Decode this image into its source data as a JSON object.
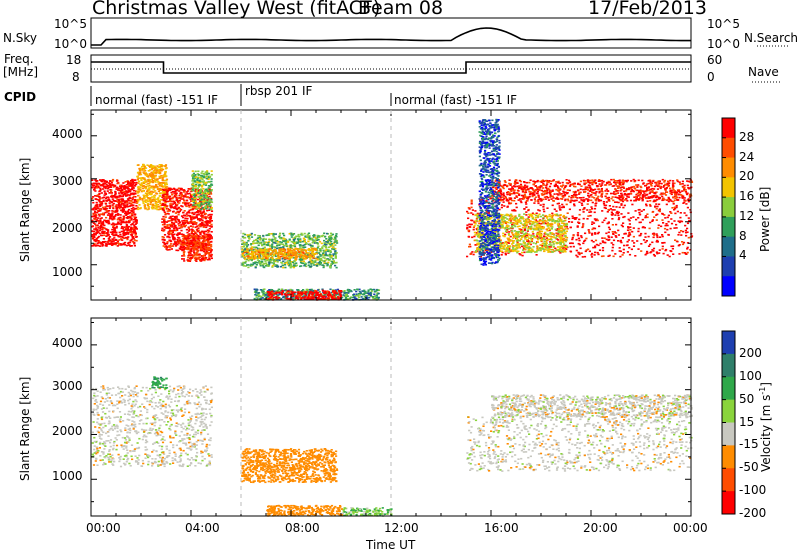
{
  "header": {
    "station": "Christmas Valley West (fitACF)",
    "beam": "Beam 08",
    "date": "17/Feb/2013"
  },
  "top_panels": {
    "nsky_label": "N.Sky",
    "nsearch_label": "N.Search",
    "noise_ticks_left": [
      "10^5",
      "10^0"
    ],
    "noise_ticks_right": [
      "10^5",
      "10^0"
    ],
    "freq_label_1": "Freq.",
    "freq_label_2": "[MHz]",
    "freq_ticks": [
      "18",
      "8"
    ],
    "nave_label": "Nave",
    "nave_ticks": [
      "60",
      "0"
    ],
    "cpid_label": "CPID",
    "cpid_segments": [
      {
        "label": "normal (fast) -151 IF",
        "start_hour": 0,
        "end_hour": 6
      },
      {
        "label": "rbsp 201 IF",
        "start_hour": 6,
        "end_hour": 12
      },
      {
        "label": "normal (fast) -151 IF",
        "start_hour": 12,
        "end_hour": 24
      }
    ]
  },
  "chart_data": [
    {
      "type": "heatmap",
      "title": "",
      "xlabel": "Time UT",
      "ylabel": "Slant Range [km]",
      "xlim": [
        0,
        24
      ],
      "ylim": [
        180,
        4600
      ],
      "x_ticks": [
        "00:00",
        "04:00",
        "08:00",
        "12:00",
        "16:00",
        "20:00",
        "00:00"
      ],
      "y_ticks": [
        "1000",
        "2000",
        "3000",
        "4000"
      ],
      "colorbar": {
        "label": "Power [dB]",
        "ticks": [
          "28",
          "24",
          "20",
          "16",
          "12",
          "8",
          "4"
        ],
        "colors": [
          "#ff0000",
          "#ff4d00",
          "#ff8c00",
          "#f3c400",
          "#8acd3c",
          "#2f9f5a",
          "#1f6e8a",
          "#1e3fb0",
          "#0000ff"
        ]
      },
      "blobs": [
        {
          "x": [
            0.0,
            1.8
          ],
          "y": [
            1450,
            3000
          ],
          "v": 29
        },
        {
          "x": [
            1.8,
            3.0
          ],
          "y": [
            2300,
            3350
          ],
          "v": 18
        },
        {
          "x": [
            2.8,
            4.8
          ],
          "y": [
            1350,
            2800
          ],
          "v": 28
        },
        {
          "x": [
            4.0,
            4.8
          ],
          "y": [
            2300,
            3200
          ],
          "v": 12
        },
        {
          "x": [
            3.6,
            4.8
          ],
          "y": [
            1100,
            1700
          ],
          "v": 26
        },
        {
          "x": [
            6.0,
            9.8
          ],
          "y": [
            950,
            1750
          ],
          "v": 11
        },
        {
          "x": [
            6.0,
            9.0
          ],
          "y": [
            1150,
            1400
          ],
          "v": 19
        },
        {
          "x": [
            6.5,
            11.5
          ],
          "y": [
            200,
            450
          ],
          "v": 9
        },
        {
          "x": [
            7.0,
            10.0
          ],
          "y": [
            200,
            420
          ],
          "v": 29
        },
        {
          "x": [
            15.0,
            24.0
          ],
          "y": [
            1200,
            2600
          ],
          "v": 29
        },
        {
          "x": [
            15.3,
            19.0
          ],
          "y": [
            1300,
            2200
          ],
          "v": 15
        },
        {
          "x": [
            16.0,
            24.0
          ],
          "y": [
            2500,
            3000
          ],
          "v": 27
        },
        {
          "x": [
            15.5,
            16.3
          ],
          "y": [
            1000,
            4400
          ],
          "v": 5
        }
      ]
    },
    {
      "type": "heatmap",
      "title": "",
      "xlabel": "Time UT",
      "ylabel": "Slant Range [km]",
      "xlim": [
        0,
        24
      ],
      "ylim": [
        180,
        4600
      ],
      "x_ticks": [
        "00:00",
        "04:00",
        "08:00",
        "12:00",
        "16:00",
        "20:00",
        "00:00"
      ],
      "y_ticks": [
        "1000",
        "2000",
        "3000",
        "4000"
      ],
      "colorbar": {
        "label": "Velocity [m s^-1]",
        "ticks": [
          "200",
          "100",
          "50",
          "15",
          "-15",
          "-50",
          "-100",
          "-200"
        ],
        "colors": [
          "#1e3fb0",
          "#2f7f6a",
          "#2fa84a",
          "#8ad43c",
          "#c8c8c0",
          "#ff8c00",
          "#ff4d00",
          "#ff0000"
        ]
      },
      "blobs": [
        {
          "x": [
            0.0,
            4.8
          ],
          "y": [
            1300,
            3100
          ],
          "v": 0
        },
        {
          "x": [
            2.4,
            3.0
          ],
          "y": [
            3050,
            3300
          ],
          "v": 60
        },
        {
          "x": [
            6.0,
            9.8
          ],
          "y": [
            950,
            1700
          ],
          "v": -40
        },
        {
          "x": [
            7.0,
            10.0
          ],
          "y": [
            200,
            430
          ],
          "v": -40
        },
        {
          "x": [
            10.0,
            12.0
          ],
          "y": [
            200,
            380
          ],
          "v": 30
        },
        {
          "x": [
            15.0,
            24.0
          ],
          "y": [
            1200,
            2500
          ],
          "v": 0
        },
        {
          "x": [
            16.0,
            24.0
          ],
          "y": [
            2400,
            2900
          ],
          "v": 0
        }
      ]
    }
  ]
}
